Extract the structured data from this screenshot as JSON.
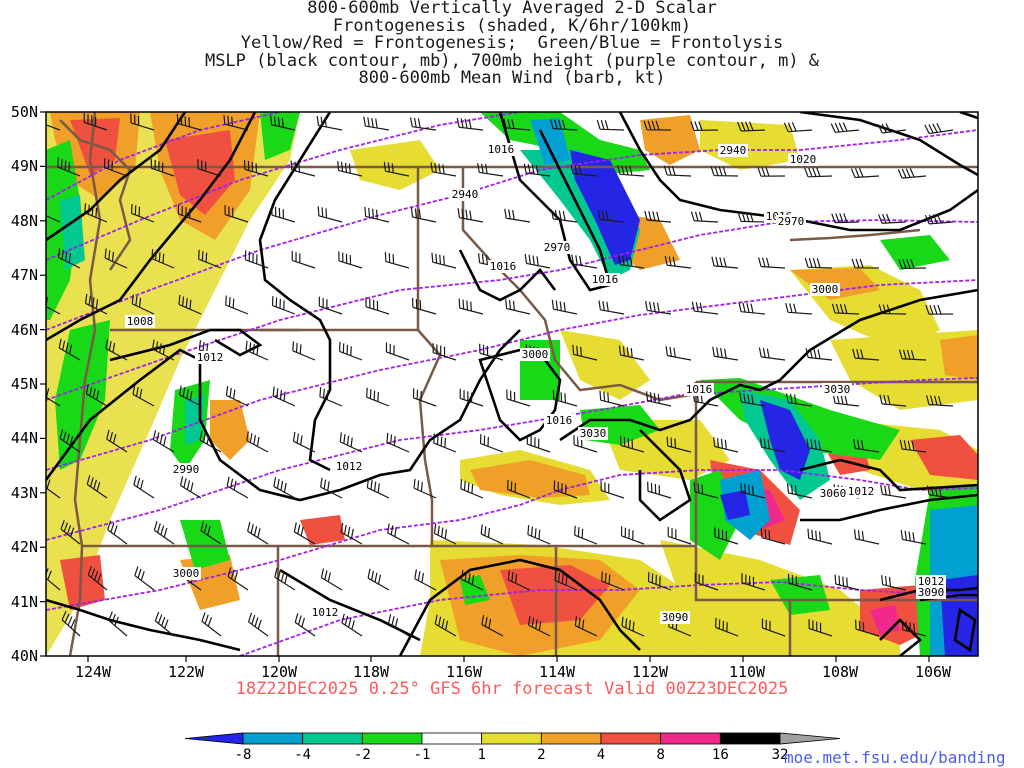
{
  "title": {
    "lines": [
      "800-600mb Vertically Averaged 2-D Scalar",
      "Frontogenesis (shaded, K/6hr/100km)",
      "Yellow/Red = Frontogenesis;  Green/Blue = Frontolysis",
      "MSLP (black contour, mb), 700mb height (purple contour, m) &",
      "800-600mb Mean Wind (barb, kt)"
    ]
  },
  "axes": {
    "lat_labels": [
      "50N",
      "49N",
      "48N",
      "47N",
      "46N",
      "45N",
      "44N",
      "43N",
      "42N",
      "41N",
      "40N"
    ],
    "lon_labels": [
      "124W",
      "122W",
      "120W",
      "118W",
      "116W",
      "114W",
      "112W",
      "110W",
      "108W",
      "106W"
    ]
  },
  "contour_labels": {
    "mslp": [
      "1016",
      "1020",
      "1016",
      "1016",
      "1016",
      "1008",
      "1012",
      "1012",
      "1016",
      "1016",
      "1012",
      "1012",
      "1012"
    ],
    "height": [
      "2940",
      "2940",
      "2970",
      "2970",
      "3000",
      "3000",
      "3030",
      "3030",
      "3000",
      "2990",
      "3060",
      "3090",
      "3090"
    ]
  },
  "footer": "18Z22DEC2025 0.25° GFS 6hr forecast Valid 00Z23DEC2025",
  "colorbar": {
    "ticks": [
      "-8",
      "-4",
      "-2",
      "-1",
      "1",
      "2",
      "4",
      "8",
      "16",
      "32"
    ],
    "colors": [
      "#2525e6",
      "#00a0d0",
      "#00c890",
      "#18d818",
      "#ffffff",
      "#e6dc32",
      "#f0a028",
      "#f05040",
      "#f0288c",
      "#000000",
      "#a0a0a0"
    ]
  },
  "credit": "moe.met.fsu.edu/banding",
  "colors": {
    "mslp": "#000000",
    "height": "#a020f0",
    "border": "#7a5a46",
    "barb": "#1a1a1a"
  }
}
